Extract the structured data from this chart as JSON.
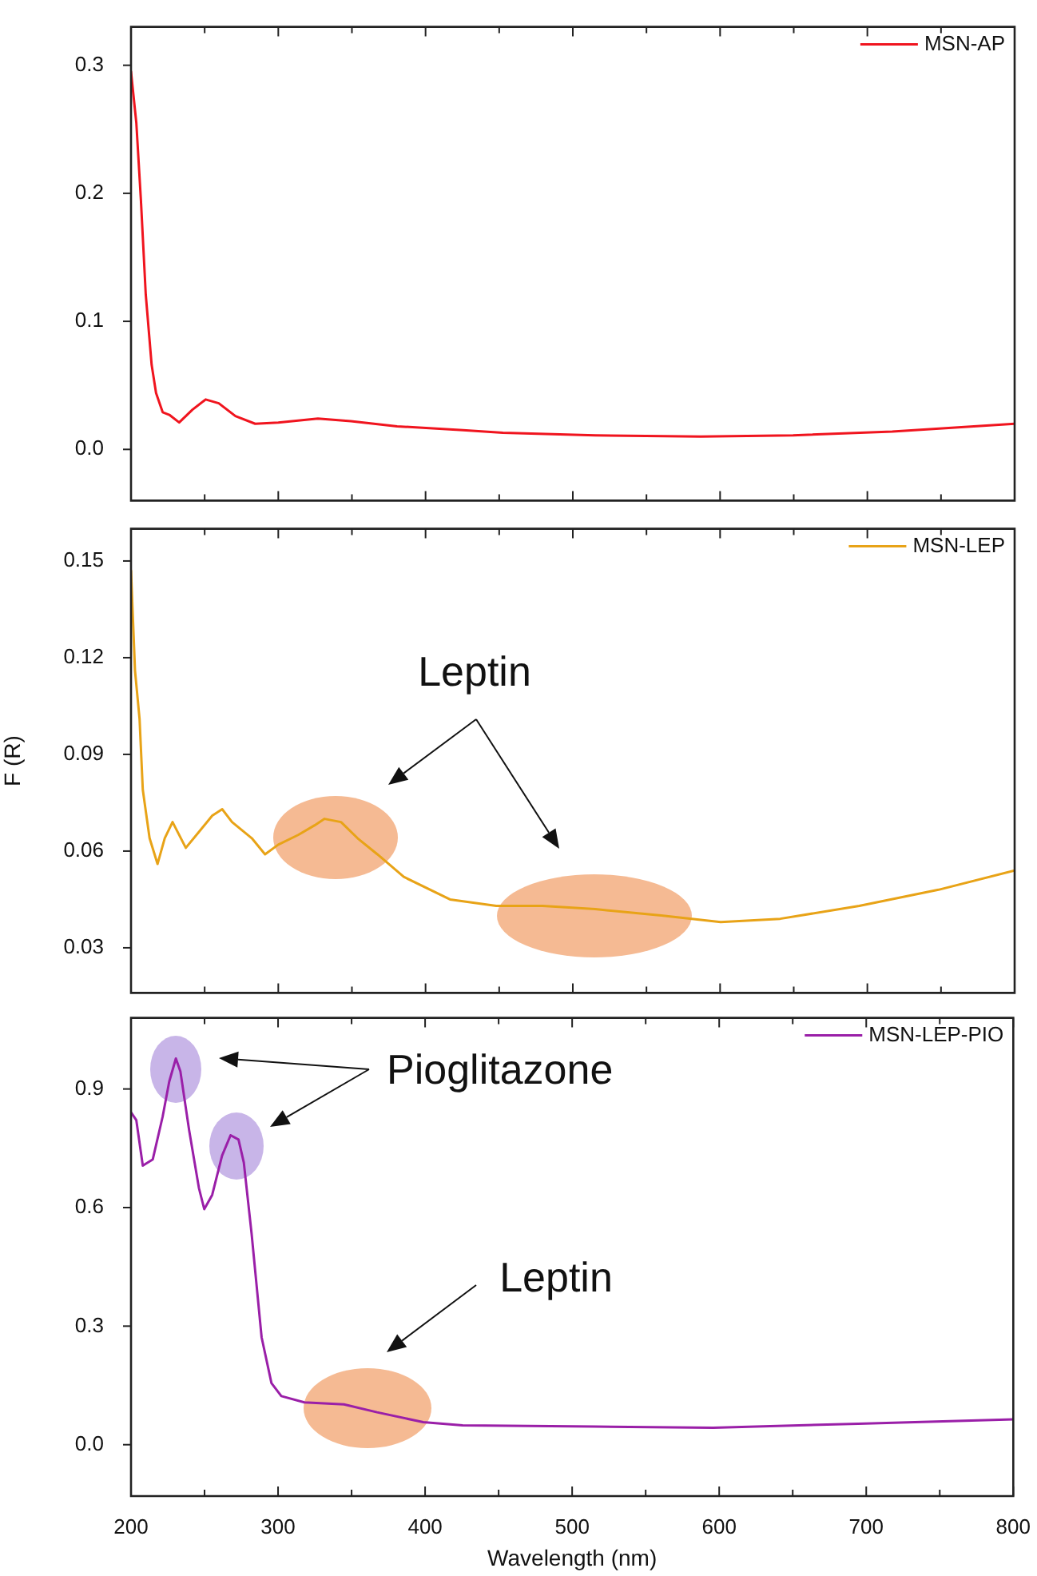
{
  "chart_data": [
    {
      "type": "line",
      "xlim": [
        200,
        800
      ],
      "xticks": [
        200,
        {
          "value": 250,
          "label": null
        },
        300,
        {
          "value": 350,
          "label": null
        },
        400,
        {
          "value": 450,
          "label": null
        },
        500,
        {
          "value": 550,
          "label": null
        },
        600,
        {
          "value": 650,
          "label": null
        },
        700,
        {
          "value": 750,
          "label": null
        },
        800
      ],
      "ylim": [
        -0.04,
        0.33
      ],
      "yticks": [
        {
          "value": 0,
          "label": "0.0"
        },
        0.1,
        0.2,
        0.3
      ],
      "tick_labels": "y",
      "legend": "top right",
      "marker": "none",
      "x": [
        200,
        203.6,
        206.7,
        210,
        214,
        217,
        221.5,
        226,
        232.7,
        241.7,
        250.7,
        259.6,
        270.9,
        284.3,
        300,
        326.9,
        349.3,
        380.7,
        425.5,
        452.5,
        515.2,
        586.9,
        649.6,
        716.9,
        800
      ],
      "series": [
        {
          "name": "MSN-AP",
          "color": "#f0141e",
          "values": [
            0.295,
            0.255,
            0.195,
            0.121,
            0.066,
            0.044,
            0.029,
            0.027,
            0.021,
            0.031,
            0.039,
            0.036,
            0.026,
            0.02,
            0.021,
            0.024,
            0.022,
            0.018,
            0.015,
            0.013,
            0.011,
            0.01,
            0.011,
            0.014,
            0.02
          ]
        }
      ]
    },
    {
      "type": "line",
      "ylabel": "F (R)",
      "annotations": [
        "Leptin"
      ],
      "xlim": [
        200,
        800
      ],
      "xticks": [
        200,
        {
          "value": 250,
          "label": null
        },
        300,
        {
          "value": 350,
          "label": null
        },
        400,
        {
          "value": 450,
          "label": null
        },
        500,
        {
          "value": 550,
          "label": null
        },
        600,
        {
          "value": 650,
          "label": null
        },
        700,
        {
          "value": 750,
          "label": null
        },
        800
      ],
      "ylim": [
        0.016,
        0.16
      ],
      "yticks": [
        0.03,
        0.06,
        0.09,
        0.12,
        0.15
      ],
      "tick_labels": "y",
      "legend": "top right",
      "marker": "none",
      "x": [
        200,
        202.7,
        205.8,
        208,
        212.6,
        218,
        222.9,
        228.2,
        237.2,
        246.2,
        255.2,
        261.9,
        268.6,
        282,
        291,
        300,
        313.5,
        324.7,
        331.4,
        342.6,
        353.8,
        367.3,
        385.2,
        416.6,
        448,
        479.4,
        515.2,
        560,
        600.4,
        640.8,
        694.5,
        748.3,
        800
      ],
      "series": [
        {
          "name": "MSN-LEP",
          "color": "#e8a317",
          "values": [
            0.147,
            0.116,
            0.101,
            0.079,
            0.064,
            0.056,
            0.064,
            0.069,
            0.061,
            0.066,
            0.071,
            0.073,
            0.069,
            0.064,
            0.059,
            0.062,
            0.065,
            0.068,
            0.07,
            0.069,
            0.064,
            0.059,
            0.052,
            0.045,
            0.043,
            0.043,
            0.042,
            0.04,
            0.038,
            0.039,
            0.043,
            0.048,
            0.054
          ]
        }
      ]
    },
    {
      "type": "line",
      "xlabel": "Wavelength (nm)",
      "annotations": [
        "Pioglitazone",
        "Leptin"
      ],
      "xlim": [
        200,
        800
      ],
      "xticks": [
        200,
        {
          "value": 250,
          "label": null
        },
        300,
        {
          "value": 350,
          "label": null
        },
        400,
        {
          "value": 450,
          "label": null
        },
        500,
        {
          "value": 550,
          "label": null
        },
        600,
        {
          "value": 650,
          "label": null
        },
        700,
        {
          "value": 750,
          "label": null
        },
        800
      ],
      "ylim": [
        -0.13,
        1.08
      ],
      "yticks": [
        {
          "value": 0,
          "label": "0.0"
        },
        0.3,
        0.6,
        0.9
      ],
      "legend": "top right",
      "marker": "none",
      "x": [
        200,
        203.6,
        208,
        214.8,
        221.5,
        226,
        230.5,
        233.6,
        239.5,
        246.2,
        249.8,
        255.2,
        261.9,
        267.7,
        273.1,
        276.7,
        282,
        288.8,
        295.5,
        302.2,
        317.9,
        344.8,
        367.3,
        398.7,
        425.5,
        515.2,
        595.9,
        694.5,
        800
      ],
      "series": [
        {
          "name": "MSN-LEP-PIO",
          "color": "#9a1fa8",
          "values": [
            0.841,
            0.821,
            0.706,
            0.722,
            0.83,
            0.919,
            0.977,
            0.944,
            0.796,
            0.649,
            0.596,
            0.632,
            0.731,
            0.783,
            0.772,
            0.714,
            0.534,
            0.272,
            0.156,
            0.123,
            0.107,
            0.102,
            0.082,
            0.057,
            0.049,
            0.046,
            0.043,
            0.053,
            0.064
          ]
        }
      ]
    }
  ]
}
